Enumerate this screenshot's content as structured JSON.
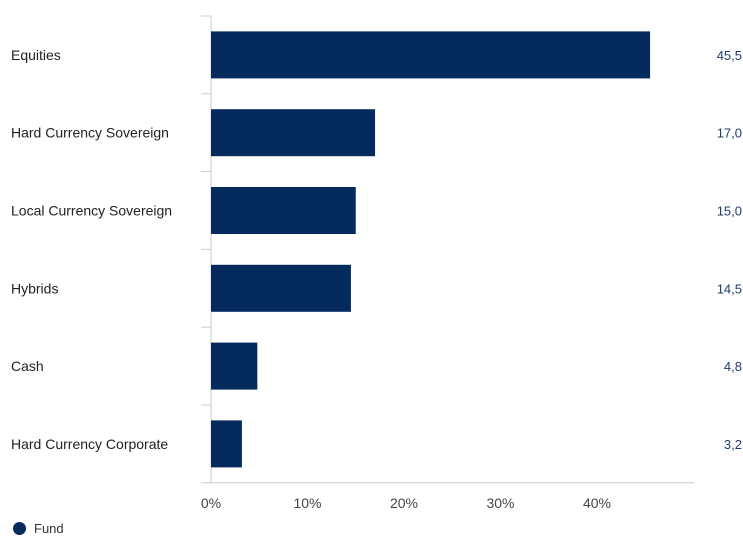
{
  "chart_data": {
    "type": "bar",
    "orientation": "horizontal",
    "categories": [
      "Equities",
      "Hard Currency Sovereign",
      "Local Currency Sovereign",
      "Hybrids",
      "Cash",
      "Hard Currency Corporate"
    ],
    "series": [
      {
        "name": "Fund",
        "values": [
          45.5,
          17.0,
          15.0,
          14.5,
          4.8,
          3.2
        ]
      }
    ],
    "data_labels": [
      "45,5",
      "17,0",
      "15,0",
      "14,5",
      "4,8",
      "3,2"
    ],
    "xlim": [
      0,
      50
    ],
    "x_ticks": [
      0,
      10,
      20,
      30,
      40
    ],
    "x_tick_labels": [
      "0%",
      "10%",
      "20%",
      "30%",
      "40%"
    ],
    "grid": false,
    "legend_position": "bottom-left",
    "colors": {
      "bar": "#052a5e",
      "data_label": "#1f3d6e",
      "category_text": "#222222",
      "axis_line": "#cccccc"
    }
  }
}
